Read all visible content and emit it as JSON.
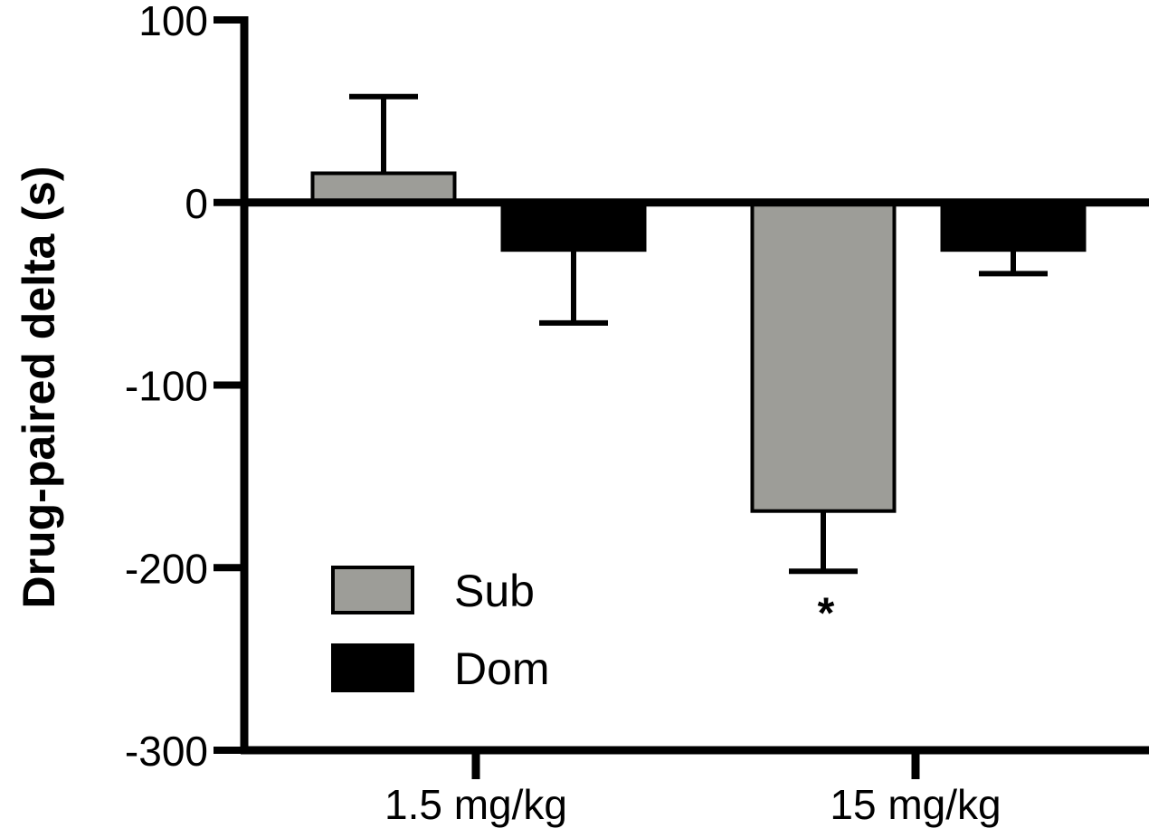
{
  "chart_data": {
    "type": "bar",
    "title": "",
    "xlabel": "",
    "ylabel": "Drug-paired delta (s)",
    "ylim": [
      -300,
      100
    ],
    "yticks": [
      100,
      0,
      -100,
      -200,
      -300
    ],
    "ytick_labels": [
      "100",
      "0",
      "-100",
      "-200",
      "-300"
    ],
    "categories": [
      "1.5 mg/kg",
      "15 mg/kg"
    ],
    "series": [
      {
        "name": "Sub",
        "color": "#9d9d98",
        "values": [
          16,
          -169
        ],
        "errors": [
          42,
          33
        ]
      },
      {
        "name": "Dom",
        "color": "#000000",
        "values": [
          -26,
          -26
        ],
        "errors": [
          40,
          13
        ]
      }
    ],
    "annotations": [
      {
        "category": "15 mg/kg",
        "series": "Sub",
        "text": "*"
      }
    ],
    "legend": {
      "position": "bottom-left",
      "entries": [
        "Sub",
        "Dom"
      ]
    },
    "grid": false,
    "error_bar_direction": "away from zero"
  }
}
